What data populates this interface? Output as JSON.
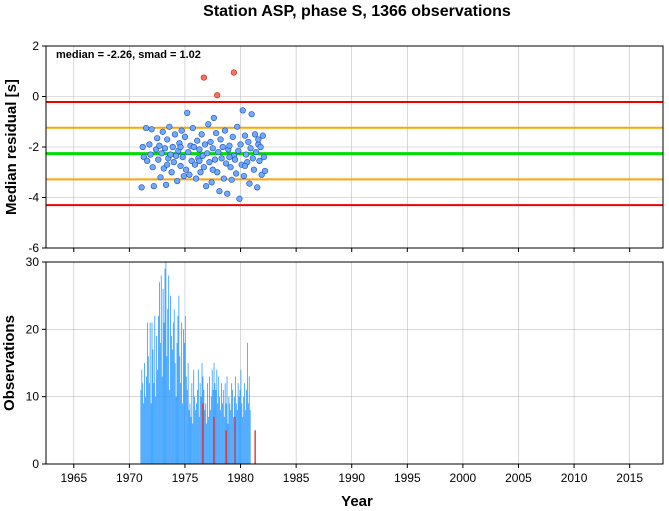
{
  "chart_data": [
    {
      "type": "scatter",
      "title": "Station ASP, phase S, 1366 observations",
      "xlabel": "",
      "ylabel": "Median residual [s]",
      "annotation": "median = -2.26, smad = 1.02",
      "xlim": [
        1962.5,
        2018
      ],
      "ylim": [
        -6,
        2
      ],
      "yticks": [
        -6,
        -4,
        -2,
        0,
        2
      ],
      "grid": true,
      "reference_lines": [
        {
          "name": "median",
          "value": -2.26,
          "color": "#00dd00"
        },
        {
          "name": "median + 1 smad",
          "value": -1.24,
          "color": "#ffa500"
        },
        {
          "name": "median - 1 smad",
          "value": -3.28,
          "color": "#ffa500"
        },
        {
          "name": "median + 2 smad",
          "value": -0.22,
          "color": "#ee0000"
        },
        {
          "name": "median - 2 smad",
          "value": -4.3,
          "color": "#ee0000"
        }
      ],
      "point_colors": {
        "normal": "#6fa8ff",
        "outlier": "#ff6f5e"
      },
      "points": [
        [
          1971.1,
          -3.6
        ],
        [
          1971.2,
          -2.0
        ],
        [
          1971.3,
          -2.4
        ],
        [
          1971.5,
          -1.25
        ],
        [
          1971.6,
          -2.55
        ],
        [
          1971.8,
          -1.9
        ],
        [
          1971.9,
          -2.3
        ],
        [
          1972.0,
          -1.3
        ],
        [
          1972.1,
          -2.8
        ],
        [
          1972.2,
          -3.55
        ],
        [
          1972.4,
          -2.1
        ],
        [
          1972.5,
          -1.65
        ],
        [
          1972.6,
          -2.5
        ],
        [
          1972.7,
          -1.95
        ],
        [
          1972.8,
          -3.2
        ],
        [
          1972.9,
          -2.25
        ],
        [
          1973.0,
          -1.4
        ],
        [
          1973.1,
          -2.85
        ],
        [
          1973.2,
          -2.05
        ],
        [
          1973.3,
          -3.5
        ],
        [
          1973.4,
          -1.7
        ],
        [
          1973.5,
          -2.45
        ],
        [
          1973.6,
          -1.2
        ],
        [
          1973.7,
          -2.3
        ],
        [
          1973.8,
          -3.0
        ],
        [
          1973.9,
          -2.0
        ],
        [
          1974.0,
          -2.6
        ],
        [
          1974.1,
          -1.5
        ],
        [
          1974.2,
          -2.35
        ],
        [
          1974.3,
          -3.35
        ],
        [
          1974.4,
          -2.15
        ],
        [
          1974.5,
          -1.85
        ],
        [
          1974.6,
          -2.75
        ],
        [
          1974.7,
          -1.35
        ],
        [
          1974.8,
          -2.4
        ],
        [
          1974.9,
          -3.15
        ],
        [
          1975.0,
          -1.6
        ],
        [
          1975.1,
          -2.9
        ],
        [
          1975.2,
          -0.65
        ],
        [
          1975.3,
          -2.2
        ],
        [
          1975.4,
          -3.1
        ],
        [
          1975.5,
          -1.95
        ],
        [
          1975.6,
          -2.55
        ],
        [
          1975.7,
          -1.25
        ],
        [
          1975.8,
          -2.0
        ],
        [
          1975.9,
          -2.7
        ],
        [
          1976.0,
          -3.25
        ],
        [
          1976.1,
          -1.75
        ],
        [
          1976.2,
          -2.45
        ],
        [
          1976.3,
          -2.1
        ],
        [
          1976.4,
          -3.0
        ],
        [
          1976.5,
          -1.5
        ],
        [
          1976.6,
          -2.35
        ],
        [
          1976.7,
          -2.8
        ],
        [
          1976.8,
          -1.9
        ],
        [
          1976.9,
          -3.55
        ],
        [
          1977.0,
          -2.25
        ],
        [
          1977.1,
          -1.1
        ],
        [
          1977.2,
          -2.6
        ],
        [
          1977.3,
          -1.8
        ],
        [
          1977.4,
          -3.4
        ],
        [
          1977.5,
          -2.05
        ],
        [
          1977.6,
          -0.85
        ],
        [
          1977.7,
          -2.5
        ],
        [
          1977.8,
          -1.45
        ],
        [
          1977.9,
          -3.0
        ],
        [
          1978.0,
          -2.2
        ],
        [
          1978.1,
          -3.75
        ],
        [
          1978.2,
          -1.7
        ],
        [
          1978.3,
          -2.45
        ],
        [
          1978.4,
          -2.0
        ],
        [
          1978.5,
          -3.25
        ],
        [
          1978.6,
          -1.35
        ],
        [
          1978.7,
          -2.65
        ],
        [
          1978.8,
          -3.85
        ],
        [
          1978.9,
          -2.1
        ],
        [
          1979.0,
          -1.95
        ],
        [
          1979.1,
          -2.8
        ],
        [
          1979.2,
          -3.3
        ],
        [
          1979.3,
          -1.6
        ],
        [
          1979.4,
          -2.35
        ],
        [
          1979.5,
          -2.5
        ],
        [
          1979.6,
          -3.05
        ],
        [
          1979.7,
          -1.2
        ],
        [
          1979.8,
          -2.15
        ],
        [
          1979.9,
          -4.05
        ],
        [
          1980.0,
          -1.9
        ],
        [
          1980.1,
          -2.7
        ],
        [
          1980.2,
          -0.55
        ],
        [
          1980.3,
          -3.15
        ],
        [
          1980.4,
          -1.55
        ],
        [
          1980.5,
          -2.3
        ],
        [
          1980.6,
          -2.6
        ],
        [
          1980.7,
          -1.8
        ],
        [
          1980.8,
          -3.45
        ],
        [
          1980.9,
          -2.05
        ],
        [
          1981.0,
          -0.7
        ],
        [
          1981.1,
          -2.45
        ],
        [
          1981.2,
          -2.9
        ],
        [
          1981.3,
          -1.5
        ],
        [
          1981.4,
          -2.2
        ],
        [
          1981.5,
          -3.6
        ],
        [
          1981.6,
          -1.9
        ],
        [
          1981.7,
          -2.55
        ],
        [
          1981.8,
          -2.0
        ],
        [
          1981.9,
          -3.1
        ],
        [
          1982.0,
          -1.55
        ],
        [
          1982.1,
          -2.4
        ],
        [
          1982.2,
          -2.95
        ],
        [
          1973.4,
          -2.7
        ],
        [
          1974.6,
          -2.0
        ],
        [
          1976.3,
          -2.55
        ],
        [
          1977.5,
          -2.9
        ],
        [
          1979.0,
          -2.4
        ],
        [
          1980.4,
          -2.75
        ],
        [
          1981.6,
          -1.7
        ]
      ],
      "outliers": [
        [
          1976.7,
          0.75
        ],
        [
          1977.9,
          0.05
        ],
        [
          1979.4,
          0.95
        ]
      ]
    },
    {
      "type": "bar",
      "title": "",
      "xlabel": "Year",
      "ylabel": "Observations",
      "xlim": [
        1962.5,
        2018
      ],
      "ylim": [
        0,
        30
      ],
      "yticks": [
        0,
        10,
        20,
        30
      ],
      "xticks": [
        "1965",
        "1970",
        "1975",
        "1980",
        "1985",
        "1990",
        "1995",
        "2000",
        "2005",
        "2010",
        "2015"
      ],
      "grid": true,
      "bar_colors": {
        "primary": "#2f9bff",
        "secondary": "#e3343f"
      },
      "bins_start": 1971.0,
      "bin_width": 0.0833,
      "values": [
        11,
        14,
        12,
        9,
        15,
        10,
        13,
        21,
        16,
        12,
        21,
        9,
        21,
        17,
        12,
        22,
        10,
        19,
        14,
        22,
        27,
        18,
        28,
        13,
        26,
        21,
        29,
        30,
        16,
        23,
        28,
        11,
        25,
        19,
        17,
        21,
        23,
        15,
        10,
        18,
        22,
        25,
        16,
        12,
        21,
        9,
        20,
        18,
        22,
        13,
        11,
        15,
        8,
        9,
        7,
        12,
        6,
        14,
        10,
        8,
        9,
        11,
        14,
        7,
        12,
        10,
        15,
        13,
        11,
        8,
        9,
        6,
        12,
        7,
        13,
        8,
        10,
        14,
        11,
        15,
        12,
        11,
        14,
        9,
        13,
        10,
        8,
        12,
        9,
        11,
        7,
        12,
        9,
        13,
        6,
        10,
        9,
        8,
        12,
        11,
        7,
        10,
        13,
        9,
        8,
        12,
        10,
        11,
        14,
        9,
        7,
        10,
        12,
        8,
        11,
        18,
        9,
        13,
        8
      ],
      "secondary_bars": [
        {
          "x": 1976.55,
          "value": 9
        },
        {
          "x": 1977.55,
          "value": 7
        },
        {
          "x": 1978.65,
          "value": 5
        },
        {
          "x": 1979.45,
          "value": 7
        },
        {
          "x": 1981.25,
          "value": 5
        }
      ]
    }
  ]
}
